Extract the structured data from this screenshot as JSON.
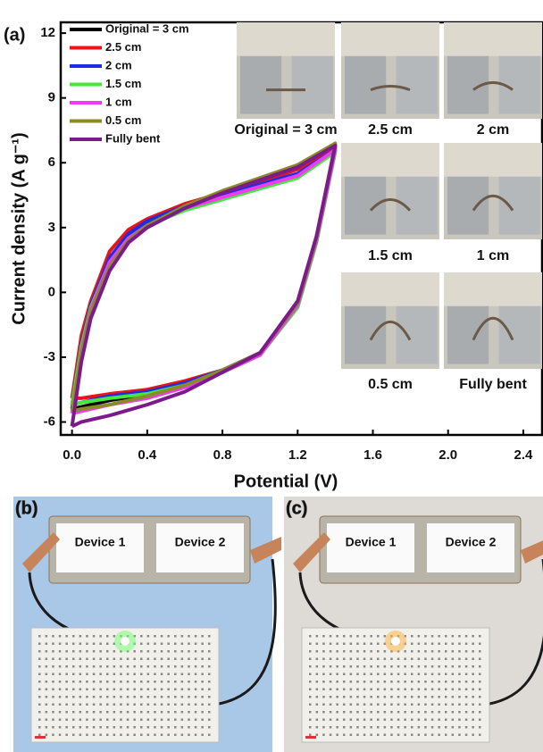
{
  "chart_data": {
    "type": "line",
    "panel_label": "(a)",
    "xlabel": "Potential (V)",
    "ylabel": "Current density (A g⁻¹)",
    "x": [
      0,
      0.05,
      0.1,
      0.2,
      0.3,
      0.4,
      0.6,
      0.8,
      1.0,
      1.2,
      1.4,
      1.3,
      1.2,
      1.0,
      0.8,
      0.6,
      0.4,
      0.2,
      0.05,
      0
    ],
    "series": [
      {
        "name": "Original = 3 cm",
        "color": "#000000",
        "values": [
          -5.4,
          -2.6,
          -0.6,
          1.5,
          2.6,
          3.2,
          4.0,
          4.6,
          5.2,
          5.8,
          6.8,
          2.5,
          -0.5,
          -2.8,
          -3.7,
          -4.3,
          -4.7,
          -5.0,
          -5.3,
          -5.4
        ]
      },
      {
        "name": "2.5 cm",
        "color": "#e8141a",
        "values": [
          -4.9,
          -2.0,
          -0.4,
          1.9,
          2.9,
          3.4,
          4.1,
          4.6,
          5.1,
          5.7,
          6.7,
          2.4,
          -0.6,
          -2.8,
          -3.6,
          -4.1,
          -4.5,
          -4.7,
          -4.9,
          -4.9
        ]
      },
      {
        "name": "2 cm",
        "color": "#1a2ee8",
        "values": [
          -5.2,
          -2.4,
          -0.6,
          1.6,
          2.7,
          3.3,
          4.0,
          4.5,
          5.0,
          5.5,
          6.6,
          2.4,
          -0.6,
          -2.8,
          -3.6,
          -4.2,
          -4.6,
          -4.8,
          -5.1,
          -5.2
        ]
      },
      {
        "name": "1.5 cm",
        "color": "#44e83c",
        "values": [
          -5.2,
          -2.5,
          -0.7,
          1.4,
          2.5,
          3.1,
          3.8,
          4.3,
          4.8,
          5.3,
          6.5,
          2.3,
          -0.7,
          -2.9,
          -3.7,
          -4.3,
          -4.7,
          -4.9,
          -5.1,
          -5.2
        ]
      },
      {
        "name": "1 cm",
        "color": "#f03cf0",
        "values": [
          -5.6,
          -2.7,
          -0.8,
          1.4,
          2.5,
          3.1,
          3.9,
          4.4,
          4.9,
          5.4,
          6.6,
          2.4,
          -0.6,
          -2.9,
          -3.7,
          -4.4,
          -4.9,
          -5.2,
          -5.5,
          -5.6
        ]
      },
      {
        "name": "0.5 cm",
        "color": "#8b8a2a",
        "values": [
          -5.5,
          -2.8,
          -0.9,
          1.2,
          2.4,
          3.1,
          4.0,
          4.7,
          5.3,
          5.9,
          6.9,
          2.5,
          -0.5,
          -2.8,
          -3.6,
          -4.3,
          -4.8,
          -5.2,
          -5.4,
          -5.5
        ]
      },
      {
        "name": "Fully bent",
        "color": "#7b1a8a",
        "values": [
          -6.2,
          -3.2,
          -1.2,
          1.0,
          2.3,
          3.0,
          3.9,
          4.6,
          5.2,
          5.8,
          6.8,
          2.6,
          -0.4,
          -2.8,
          -3.7,
          -4.6,
          -5.2,
          -5.7,
          -6.0,
          -6.2
        ]
      }
    ],
    "xlim": [
      -0.06,
      2.5
    ],
    "ylim": [
      -6.6,
      12.5
    ],
    "xticks": [
      {
        "value": 0,
        "label": "0.0"
      },
      0.4,
      0.8,
      1.2,
      1.6,
      {
        "value": 2,
        "label": "2.0"
      },
      2.4
    ],
    "yticks": [
      -6,
      -3,
      0,
      3,
      6,
      9,
      12
    ],
    "legend": "upper left",
    "insets": [
      "Original = 3 cm",
      "2.5 cm",
      "2 cm",
      "1.5 cm",
      "1 cm",
      "0.5 cm",
      "Fully bent"
    ]
  },
  "photos": {
    "panels": [
      {
        "label": "(b)",
        "devices": [
          "Device 1",
          "Device 2"
        ],
        "led": "#7dff7a"
      },
      {
        "label": "(c)",
        "devices": [
          "Device 1",
          "Device 2"
        ],
        "led": "#ffb64a"
      }
    ]
  }
}
